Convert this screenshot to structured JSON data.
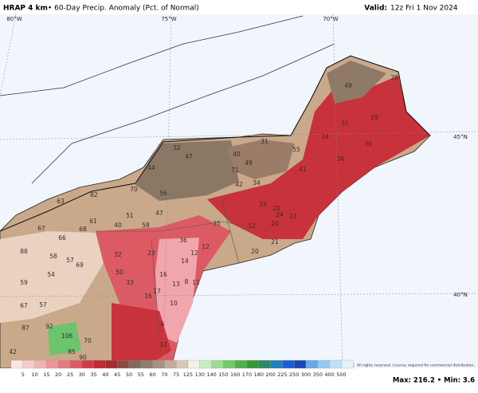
{
  "header": {
    "model": "HRAP 4 km",
    "title": "• 60-Day Precip. Anomaly (Pct. of Normal)",
    "valid_label": "Valid:",
    "valid": "12z Fri 1 Nov 2024"
  },
  "map": {
    "lon_labels": [
      "80°W",
      "75°W",
      "70°W"
    ],
    "lat_labels": [
      "45°N",
      "40°N"
    ],
    "value_labels": [
      "49",
      "29",
      "31",
      "29",
      "34",
      "30",
      "31",
      "55",
      "32",
      "47",
      "40",
      "49",
      "71",
      "44",
      "41",
      "34",
      "56",
      "70",
      "82",
      "63",
      "61",
      "67",
      "68",
      "42",
      "34",
      "33",
      "20",
      "24",
      "27",
      "20",
      "12",
      "40",
      "58",
      "51",
      "47",
      "36",
      "35",
      "12",
      "23",
      "66",
      "88",
      "58",
      "57",
      "69",
      "32",
      "14",
      "12",
      "50",
      "54",
      "59",
      "16",
      "33",
      "13",
      "8",
      "11",
      "17",
      "16",
      "10",
      "57",
      "67",
      "92",
      "106",
      "87",
      "70",
      "42",
      "85",
      "90",
      "6",
      "32",
      "20",
      "21"
    ]
  },
  "colorbar": {
    "labels": [
      5,
      10,
      15,
      20,
      25,
      30,
      35,
      40,
      45,
      50,
      55,
      60,
      70,
      75,
      125,
      130,
      140,
      150,
      160,
      170,
      180,
      200,
      225,
      250,
      300,
      350,
      400,
      500
    ],
    "colors": [
      "#fbe6e6",
      "#f7cccc",
      "#f3b3b5",
      "#ee9599",
      "#e67880",
      "#dc5a64",
      "#cf3c48",
      "#bf2a35",
      "#a52d30",
      "#8a4a3e",
      "#806a5a",
      "#8f7c6a",
      "#a8927e",
      "#c4ad98",
      "#dcc8b6",
      "#f5f0ea",
      "#c8eec0",
      "#9edc92",
      "#74c86a",
      "#4fb24a",
      "#2f9a34",
      "#2a8a6a",
      "#2080c0",
      "#1860d8",
      "#1848b8",
      "#6aa8e8",
      "#98c8f0",
      "#bfe0f6",
      "#e0f2fb"
    ]
  },
  "copyright": "© 2024 WeatherBELL Analytics, LLC. All rights reserved. License required for commercial distribution.",
  "extremes": "Max: 216.2 • Min: 3.6"
}
